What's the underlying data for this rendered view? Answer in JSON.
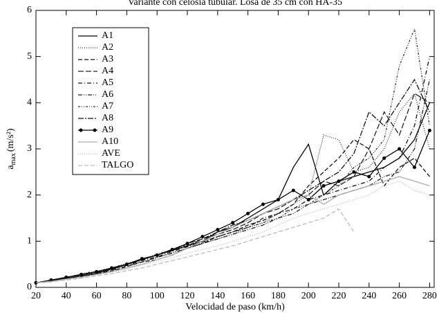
{
  "chart_data": {
    "type": "line",
    "title": "Variante con celosía tubular. Losa de 35 cm con HA-35",
    "xlabel": "Velocidad de paso (km/h)",
    "ylabel": {
      "base": "a",
      "sub": "max",
      "unit": "(m/s²)"
    },
    "x": [
      20,
      30,
      40,
      50,
      60,
      70,
      80,
      90,
      100,
      110,
      120,
      130,
      140,
      150,
      160,
      170,
      180,
      190,
      200,
      210,
      220,
      230,
      240,
      250,
      260,
      270,
      280
    ],
    "xlim": [
      20,
      283
    ],
    "xticks": [
      20,
      40,
      60,
      80,
      100,
      120,
      140,
      160,
      180,
      200,
      220,
      240,
      260,
      280
    ],
    "ylim": [
      0,
      6
    ],
    "yticks": [
      0,
      1,
      2,
      3,
      4,
      5,
      6
    ],
    "legend": "upper left",
    "series": [
      {
        "name": "A1",
        "color": "#000000",
        "values": [
          0.1,
          0.15,
          0.2,
          0.25,
          0.3,
          0.4,
          0.5,
          0.6,
          0.7,
          0.8,
          0.9,
          1.0,
          1.2,
          1.3,
          1.5,
          1.7,
          1.9,
          2.6,
          3.1,
          2.0,
          2.3,
          2.4,
          2.5,
          2.6,
          2.8,
          3.2,
          4.0
        ]
      },
      {
        "name": "A2",
        "color": "#333333",
        "dash": "1 2",
        "values": [
          0.1,
          0.15,
          0.2,
          0.25,
          0.35,
          0.4,
          0.5,
          0.55,
          0.65,
          0.75,
          0.85,
          0.95,
          1.05,
          1.15,
          1.3,
          1.4,
          1.6,
          1.8,
          2.0,
          3.3,
          3.2,
          2.5,
          2.6,
          3.0,
          3.8,
          4.2,
          3.0
        ]
      },
      {
        "name": "A3",
        "color": "#111111",
        "dash": "6 3",
        "values": [
          0.1,
          0.12,
          0.18,
          0.22,
          0.3,
          0.35,
          0.45,
          0.55,
          0.6,
          0.7,
          0.85,
          0.95,
          1.1,
          1.2,
          1.35,
          1.45,
          1.6,
          1.8,
          2.2,
          2.5,
          2.8,
          3.2,
          3.0,
          2.2,
          2.6,
          2.8,
          2.4
        ]
      },
      {
        "name": "A4",
        "color": "#222222",
        "dash": "8 3",
        "values": [
          0.1,
          0.13,
          0.2,
          0.25,
          0.3,
          0.38,
          0.5,
          0.6,
          0.7,
          0.8,
          0.95,
          1.05,
          1.15,
          1.25,
          1.4,
          1.6,
          1.7,
          1.9,
          2.0,
          2.3,
          2.2,
          2.4,
          3.0,
          3.8,
          3.3,
          4.2,
          4.0
        ]
      },
      {
        "name": "A5",
        "color": "#111111",
        "dash": "6 3 1 3",
        "values": [
          0.1,
          0.14,
          0.2,
          0.24,
          0.32,
          0.4,
          0.48,
          0.58,
          0.66,
          0.78,
          0.88,
          0.98,
          1.1,
          1.2,
          1.3,
          1.5,
          1.6,
          1.7,
          1.9,
          2.0,
          2.1,
          2.2,
          2.3,
          2.6,
          2.8,
          3.5,
          5.0
        ]
      },
      {
        "name": "A6",
        "color": "#222222",
        "dash": "6 2 1 2 1 2",
        "values": [
          0.1,
          0.13,
          0.19,
          0.25,
          0.3,
          0.37,
          0.46,
          0.55,
          0.65,
          0.74,
          0.85,
          0.95,
          1.05,
          1.15,
          1.25,
          1.35,
          1.5,
          1.6,
          1.8,
          1.9,
          2.0,
          2.1,
          2.2,
          2.4,
          2.5,
          3.0,
          4.5
        ]
      },
      {
        "name": "A7",
        "color": "#333333",
        "dash": "3 2 1 2 1 2",
        "values": [
          0.1,
          0.15,
          0.2,
          0.3,
          0.35,
          0.42,
          0.52,
          0.6,
          0.72,
          0.82,
          0.92,
          1.0,
          1.1,
          1.2,
          1.3,
          1.4,
          1.5,
          1.7,
          1.8,
          2.0,
          2.2,
          2.6,
          2.8,
          3.2,
          4.8,
          5.6,
          3.5
        ]
      },
      {
        "name": "A8",
        "color": "#111111",
        "dash": "8 2 2 2",
        "values": [
          0.1,
          0.14,
          0.21,
          0.27,
          0.33,
          0.4,
          0.5,
          0.6,
          0.7,
          0.8,
          0.9,
          1.05,
          1.2,
          1.35,
          1.45,
          1.6,
          1.75,
          1.9,
          2.1,
          2.3,
          2.5,
          2.9,
          3.8,
          3.5,
          4.0,
          4.5,
          3.8
        ]
      },
      {
        "name": "A9",
        "color": "#000000",
        "marker": "circle",
        "values": [
          0.1,
          0.16,
          0.22,
          0.28,
          0.34,
          0.42,
          0.5,
          0.62,
          0.7,
          0.82,
          0.95,
          1.1,
          1.25,
          1.4,
          1.6,
          1.8,
          1.9,
          2.1,
          1.9,
          2.2,
          2.3,
          2.5,
          2.4,
          2.8,
          3.0,
          2.6,
          3.4
        ]
      },
      {
        "name": "A10",
        "color": "#aaaaaa",
        "values": [
          0.1,
          0.13,
          0.18,
          0.22,
          0.28,
          0.34,
          0.42,
          0.5,
          0.6,
          0.7,
          0.85,
          1.0,
          1.15,
          1.3,
          1.45,
          1.6,
          1.75,
          1.9,
          2.0,
          1.8,
          2.0,
          2.1,
          2.2,
          2.3,
          2.4,
          2.3,
          2.2
        ]
      },
      {
        "name": "AVE",
        "color": "#bbbbbb",
        "dash": "1 2",
        "values": [
          0.1,
          0.12,
          0.17,
          0.22,
          0.27,
          0.33,
          0.4,
          0.48,
          0.56,
          0.64,
          0.74,
          0.82,
          0.9,
          1.0,
          1.1,
          1.2,
          1.35,
          1.5,
          1.6,
          1.7,
          1.8,
          1.9,
          2.0,
          2.2,
          2.3,
          2.1,
          2.0
        ]
      },
      {
        "name": "TALGO",
        "color": "#bbbbbb",
        "dash": "6 3",
        "values": [
          0.1,
          0.12,
          0.16,
          0.2,
          0.25,
          0.3,
          0.36,
          0.42,
          0.5,
          0.58,
          0.66,
          0.74,
          0.82,
          0.9,
          1.0,
          1.1,
          1.2,
          1.3,
          1.4,
          1.5,
          1.7,
          1.2,
          null,
          null,
          null,
          null,
          null
        ]
      }
    ]
  }
}
